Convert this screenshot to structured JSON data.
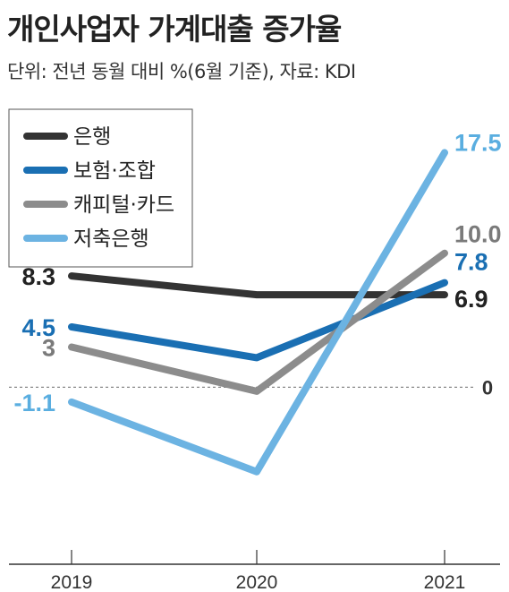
{
  "title": "개인사업자 가계대출 증가율",
  "subtitle": "단위: 전년 동월 대비 %(6월 기준), 자료: KDI",
  "chart_data": {
    "type": "line",
    "title": "개인사업자 가계대출 증가율",
    "subtitle": "단위: 전년 동월 대비 %(6월 기준), 자료: KDI",
    "x": [
      "2019",
      "2020",
      "2021"
    ],
    "ylim": [
      -13.2,
      21.2
    ],
    "zero_label": "0",
    "legend_position": "top-left",
    "grid": false,
    "series": [
      {
        "name": "은행",
        "color": "#333333",
        "values": [
          8.3,
          6.9,
          6.9
        ],
        "labels": [
          "8.3",
          "",
          "6.9"
        ],
        "label_colors": [
          "#222222",
          "",
          "#222222"
        ]
      },
      {
        "name": "보험·조합",
        "color": "#1a6fb3",
        "values": [
          4.5,
          2.2,
          7.8
        ],
        "labels": [
          "4.5",
          "",
          "7.8"
        ],
        "label_colors": [
          "#1a6fb3",
          "",
          "#1a6fb3"
        ]
      },
      {
        "name": "캐피털·카드",
        "color": "#8c8c8c",
        "values": [
          3,
          -0.3,
          10.0
        ],
        "labels": [
          "3",
          "",
          "10.0"
        ],
        "label_colors": [
          "#7a7a7a",
          "",
          "#7a7a7a"
        ]
      },
      {
        "name": "저축은행",
        "color": "#6cb3e2",
        "values": [
          -1.1,
          -6.3,
          17.5
        ],
        "labels": [
          "-1.1",
          "",
          "17.5"
        ],
        "label_colors": [
          "#5aaee0",
          "",
          "#5aaee0"
        ]
      }
    ]
  }
}
